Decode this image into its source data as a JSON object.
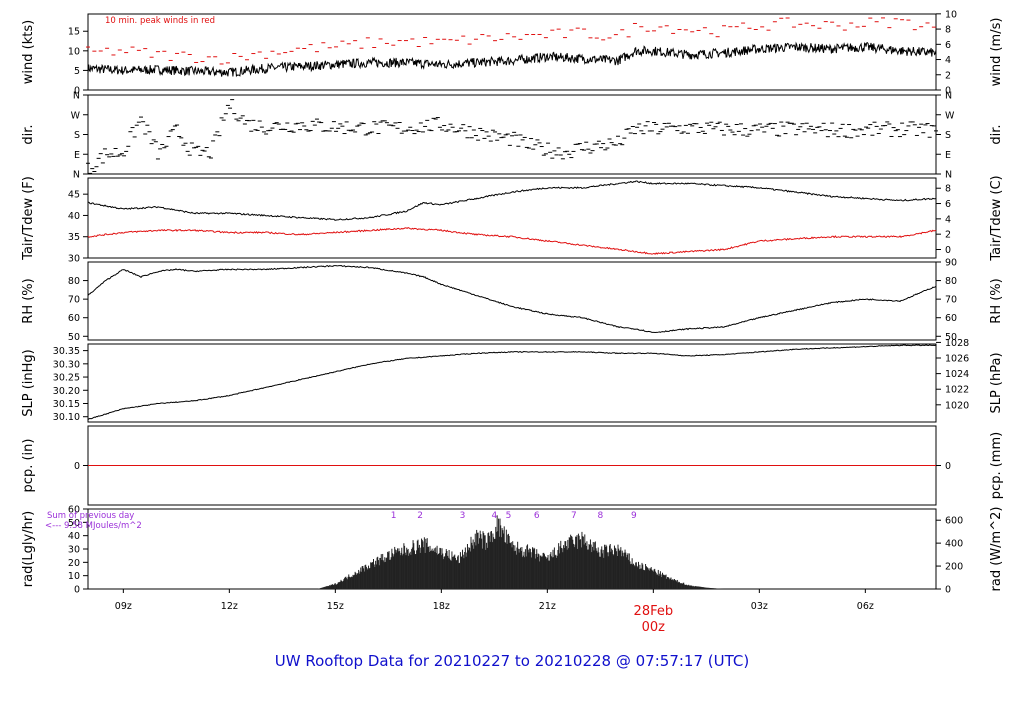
{
  "title": "UW Rooftop Data for 20210227  to  20210228 @ 07:57:17  (UTC)",
  "colors": {
    "title": "#1010cc",
    "red": "#e01010",
    "purple": "#9b30d9",
    "black": "#000000"
  },
  "x_axis": {
    "range_hours": [
      8.0,
      32.0
    ],
    "ticks": [
      {
        "h": 9,
        "label": "09z"
      },
      {
        "h": 12,
        "label": "12z"
      },
      {
        "h": 15,
        "label": "15z"
      },
      {
        "h": 18,
        "label": "18z"
      },
      {
        "h": 21,
        "label": "21z"
      },
      {
        "h": 27,
        "label": "03z"
      },
      {
        "h": 30,
        "label": "06z"
      }
    ],
    "day_marker": {
      "h": 24,
      "date": "28Feb",
      "label": "00z"
    }
  },
  "chart_data": [
    {
      "type": "line",
      "id": "wind",
      "ylabel": "wind (kts)",
      "ylabel_right": "wind (m/s)",
      "annotation": "10 min. peak winds in red",
      "ylim": [
        0,
        19.4
      ],
      "yticks": [
        0,
        5,
        10,
        15
      ],
      "right_ticks": [
        {
          "v": 0,
          "label": "0"
        },
        {
          "v": 3.89,
          "label": "2"
        },
        {
          "v": 7.78,
          "label": "4"
        },
        {
          "v": 11.66,
          "label": "6"
        },
        {
          "v": 15.55,
          "label": "8"
        },
        {
          "v": 19.44,
          "label": "10"
        }
      ],
      "series": [
        {
          "style": "line",
          "x": [
            8.0,
            9.0,
            10.0,
            11.0,
            12.0,
            13.0,
            14.0,
            15.0,
            16.0,
            17.0,
            18.0,
            19.0,
            20.0,
            20.5,
            21.0,
            22.0,
            23.0,
            23.5,
            24.0,
            25.0,
            26.0,
            27.0,
            28.0,
            29.0,
            30.0,
            31.0,
            32.0
          ],
          "y": [
            5.5,
            5.0,
            5.2,
            4.8,
            4.5,
            5.5,
            6.0,
            6.5,
            7.0,
            7.0,
            6.5,
            7.0,
            7.5,
            8.0,
            8.5,
            8.0,
            7.5,
            10.0,
            10.0,
            9.0,
            9.5,
            10.5,
            11.0,
            10.5,
            11.0,
            10.0,
            9.5
          ]
        },
        {
          "style": "peak",
          "color": "#e01010",
          "x": [
            8.0,
            9.0,
            10.0,
            11.0,
            12.0,
            13.0,
            14.0,
            15.0,
            16.0,
            17.0,
            18.0,
            19.0,
            20.0,
            21.0,
            22.0,
            23.0,
            23.5,
            24.0,
            25.0,
            26.0,
            27.0,
            28.0,
            29.0,
            30.0,
            31.0,
            32.0
          ],
          "y": [
            9.5,
            10.0,
            9.0,
            8.5,
            8.0,
            9.5,
            10.5,
            11.0,
            12.0,
            12.5,
            12.0,
            13.0,
            13.5,
            14.0,
            14.5,
            13.5,
            16.0,
            16.5,
            15.5,
            15.0,
            16.5,
            17.0,
            16.5,
            17.0,
            17.5,
            16.0
          ]
        }
      ]
    },
    {
      "type": "scatter",
      "id": "dir",
      "ylabel": "dir.",
      "ylabel_right": "dir.",
      "ylim": [
        0,
        360
      ],
      "yticks": [
        {
          "v": 0,
          "label": "N"
        },
        {
          "v": 90,
          "label": "E"
        },
        {
          "v": 180,
          "label": "S"
        },
        {
          "v": 270,
          "label": "W"
        },
        {
          "v": 360,
          "label": "N"
        }
      ],
      "right_ticks": [
        {
          "v": 0,
          "label": "N"
        },
        {
          "v": 90,
          "label": "E"
        },
        {
          "v": 180,
          "label": "S"
        },
        {
          "v": 270,
          "label": "W"
        },
        {
          "v": 360,
          "label": "N"
        }
      ],
      "series": [
        {
          "style": "dash",
          "x": [
            8.0,
            8.5,
            9.0,
            9.5,
            10.0,
            10.5,
            11.0,
            11.5,
            12.0,
            12.5,
            13.0,
            14.0,
            15.0,
            16.0,
            17.0,
            18.0,
            19.0,
            19.5,
            20.0,
            20.5,
            21.0,
            21.5,
            22.0,
            22.5,
            23.0,
            23.5,
            24.0,
            25.0,
            26.0,
            27.0,
            28.0,
            29.0,
            30.0,
            31.0,
            32.0
          ],
          "y": [
            20,
            90,
            100,
            250,
            90,
            200,
            95,
            100,
            320,
            230,
            215,
            225,
            215,
            210,
            210,
            225,
            190,
            170,
            160,
            130,
            110,
            100,
            120,
            130,
            140,
            205,
            205,
            210,
            205,
            200,
            205,
            200,
            200,
            205,
            200
          ]
        }
      ]
    },
    {
      "type": "line",
      "id": "temp",
      "ylabel": "Tair/Tdew (F)",
      "ylabel_right": "Tair/Tdew (C)",
      "ylim": [
        30,
        48.8
      ],
      "yticks": [
        30,
        35,
        40,
        45
      ],
      "right_ticks": [
        {
          "v": 32,
          "label": "0"
        },
        {
          "v": 35.6,
          "label": "2"
        },
        {
          "v": 39.2,
          "label": "4"
        },
        {
          "v": 42.8,
          "label": "6"
        },
        {
          "v": 46.4,
          "label": "8"
        }
      ],
      "series": [
        {
          "style": "line",
          "color": "#000000",
          "x": [
            8.0,
            9.0,
            10.0,
            11.0,
            12.0,
            13.0,
            14.0,
            15.0,
            16.0,
            17.0,
            17.5,
            18.0,
            19.0,
            20.0,
            21.0,
            22.0,
            23.0,
            23.5,
            24.0,
            25.0,
            26.0,
            27.0,
            28.0,
            29.0,
            30.0,
            31.0,
            32.0
          ],
          "y": [
            43.0,
            41.5,
            42.0,
            40.5,
            40.5,
            40.0,
            39.5,
            39.0,
            39.5,
            41.0,
            43.0,
            42.5,
            44.0,
            45.5,
            46.5,
            46.5,
            47.5,
            48.0,
            47.5,
            47.5,
            47.0,
            46.5,
            45.5,
            44.5,
            44.0,
            43.5,
            44.0
          ]
        },
        {
          "style": "line",
          "color": "#e01010",
          "x": [
            8.0,
            9.0,
            10.0,
            11.0,
            12.0,
            13.0,
            14.0,
            15.0,
            16.0,
            17.0,
            18.0,
            19.0,
            20.0,
            21.0,
            22.0,
            23.0,
            23.5,
            24.0,
            25.0,
            26.0,
            27.0,
            28.0,
            29.0,
            30.0,
            31.0,
            32.0
          ],
          "y": [
            35.0,
            36.0,
            36.5,
            36.5,
            36.0,
            36.0,
            35.5,
            36.0,
            36.5,
            37.0,
            36.5,
            35.5,
            35.0,
            34.0,
            33.0,
            32.0,
            31.5,
            31.0,
            31.5,
            32.0,
            34.0,
            34.5,
            35.0,
            35.0,
            35.0,
            36.5
          ]
        }
      ]
    },
    {
      "type": "line",
      "id": "rh",
      "ylabel": "RH (%)",
      "ylabel_right": "RH (%)",
      "ylim": [
        48,
        90
      ],
      "yticks": [
        50,
        60,
        70,
        80
      ],
      "right_ticks": [
        {
          "v": 50,
          "label": "50"
        },
        {
          "v": 60,
          "label": "60"
        },
        {
          "v": 70,
          "label": "70"
        },
        {
          "v": 80,
          "label": "80"
        },
        {
          "v": 90,
          "label": "90"
        }
      ],
      "series": [
        {
          "style": "line",
          "x": [
            8.0,
            8.5,
            9.0,
            9.5,
            10.0,
            10.5,
            11.0,
            12.0,
            13.0,
            14.0,
            15.0,
            16.0,
            17.0,
            17.5,
            18.0,
            18.5,
            19.0,
            20.0,
            21.0,
            22.0,
            23.0,
            23.5,
            24.0,
            25.0,
            26.0,
            27.0,
            28.0,
            29.0,
            30.0,
            31.0,
            31.5,
            32.0
          ],
          "y": [
            72,
            80,
            86,
            82,
            85,
            86,
            85,
            86,
            86,
            87,
            88,
            87,
            84,
            82,
            78,
            75,
            72,
            66,
            62,
            60,
            55,
            54,
            52,
            54,
            55,
            60,
            64,
            68,
            70,
            69,
            73,
            77
          ]
        }
      ]
    },
    {
      "type": "line",
      "id": "slp",
      "ylabel": "SLP (inHg)",
      "ylabel_right": "SLP (hPa)",
      "ylim": [
        30.08,
        30.375
      ],
      "yticks": [
        {
          "v": 30.1,
          "label": "30.10"
        },
        {
          "v": 30.15,
          "label": "30.15"
        },
        {
          "v": 30.2,
          "label": "30.20"
        },
        {
          "v": 30.25,
          "label": "30.25"
        },
        {
          "v": 30.3,
          "label": "30.30"
        },
        {
          "v": 30.35,
          "label": "30.35"
        }
      ],
      "right_ticks": [
        {
          "v": 30.145,
          "label": "1020"
        },
        {
          "v": 30.204,
          "label": "1022"
        },
        {
          "v": 30.263,
          "label": "1024"
        },
        {
          "v": 30.322,
          "label": "1026"
        },
        {
          "v": 30.381,
          "label": "1028"
        }
      ],
      "series": [
        {
          "style": "line",
          "x": [
            8.0,
            9.0,
            10.0,
            11.0,
            12.0,
            13.0,
            14.0,
            15.0,
            16.0,
            17.0,
            18.0,
            19.0,
            20.0,
            21.0,
            22.0,
            23.0,
            24.0,
            25.0,
            26.0,
            27.0,
            28.0,
            29.0,
            30.0,
            31.0,
            32.0
          ],
          "y": [
            30.09,
            30.13,
            30.15,
            30.16,
            30.18,
            30.21,
            30.24,
            30.27,
            30.3,
            30.32,
            30.33,
            30.34,
            30.345,
            30.345,
            30.345,
            30.34,
            30.34,
            30.33,
            30.335,
            30.345,
            30.355,
            30.36,
            30.365,
            30.37,
            30.37
          ]
        }
      ]
    },
    {
      "type": "line",
      "id": "pcp",
      "ylabel": "pcp. (in)",
      "ylabel_right": "pcp. (mm)",
      "ylim": [
        -1,
        1
      ],
      "yticks": [
        {
          "v": 0,
          "label": "0"
        }
      ],
      "right_ticks": [
        {
          "v": 0,
          "label": "0"
        }
      ],
      "series": [
        {
          "style": "line",
          "color": "#e01010",
          "x": [
            8.0,
            32.0
          ],
          "y": [
            0,
            0
          ]
        }
      ]
    },
    {
      "type": "area",
      "id": "rad",
      "ylabel": "rad(Lgly/hr)",
      "ylabel_right": "rad (W/m^2)",
      "annotation_lines": [
        "Sum of previous day",
        "<--- 9.58 MJoules/m^2"
      ],
      "ylim": [
        0,
        60
      ],
      "yticks": [
        0,
        10,
        20,
        30,
        40,
        50,
        60
      ],
      "right_ticks": [
        {
          "v": 0,
          "label": "0"
        },
        {
          "v": 17.2,
          "label": "200"
        },
        {
          "v": 34.4,
          "label": "400"
        },
        {
          "v": 51.6,
          "label": "600"
        }
      ],
      "markers": [
        {
          "h": 16.65,
          "label": "1"
        },
        {
          "h": 17.4,
          "label": "2"
        },
        {
          "h": 18.6,
          "label": "3"
        },
        {
          "h": 19.5,
          "label": "4"
        },
        {
          "h": 19.9,
          "label": "5"
        },
        {
          "h": 20.7,
          "label": "6"
        },
        {
          "h": 21.75,
          "label": "7"
        },
        {
          "h": 22.5,
          "label": "8"
        },
        {
          "h": 23.45,
          "label": "9"
        }
      ],
      "series": [
        {
          "style": "area",
          "x": [
            14.5,
            15.0,
            15.5,
            16.0,
            16.5,
            17.0,
            17.5,
            18.0,
            18.5,
            19.0,
            19.3,
            19.6,
            20.0,
            20.5,
            21.0,
            21.5,
            22.0,
            22.5,
            23.0,
            23.5,
            24.0,
            24.5,
            25.0,
            25.5,
            26.0
          ],
          "y": [
            0,
            4,
            12,
            20,
            27,
            32,
            36,
            30,
            24,
            42,
            38,
            52,
            34,
            30,
            24,
            36,
            40,
            30,
            32,
            20,
            15,
            8,
            3,
            1,
            0
          ]
        }
      ]
    }
  ]
}
